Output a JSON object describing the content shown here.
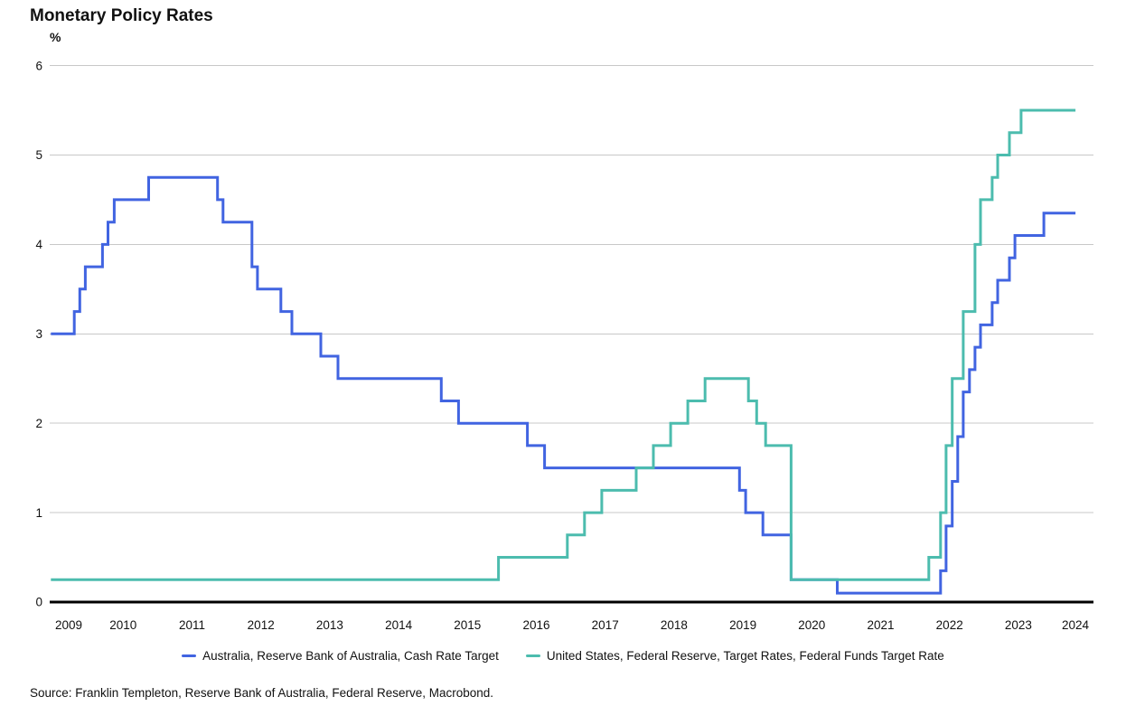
{
  "title": "Monetary Policy Rates",
  "source": "Source: Franklin Templeton, Reserve Bank of Australia, Federal Reserve, Macrobond.",
  "colors": {
    "australia_line": "#4164e1",
    "us_line": "#4cbcae",
    "gridline": "#c8c8c8",
    "zero_axis": "#000000",
    "text": "#111111"
  },
  "chart_data": {
    "type": "line",
    "step": true,
    "title": "Monetary Policy Rates",
    "xlabel": "",
    "ylabel": "%",
    "grid": true,
    "legend_position": "bottom",
    "ylim": [
      0,
      6
    ],
    "y_ticks": [
      0,
      1,
      2,
      3,
      4,
      5,
      6
    ],
    "x_tick_labels": [
      "2009",
      "2010",
      "2011",
      "2012",
      "2013",
      "2014",
      "2015",
      "2016",
      "2017",
      "2018",
      "2019",
      "2020",
      "2021",
      "2022",
      "2023",
      "2024"
    ],
    "x_range_decimal_years": [
      2009.45,
      2024.33
    ],
    "series": [
      {
        "name": "Australia, Reserve Bank of Australia, Cash Rate Target",
        "color": "#4164e1",
        "points_year_rate": [
          [
            2009.45,
            3.0
          ],
          [
            2009.79,
            3.25
          ],
          [
            2009.87,
            3.5
          ],
          [
            2009.95,
            3.75
          ],
          [
            2010.2,
            4.0
          ],
          [
            2010.28,
            4.25
          ],
          [
            2010.37,
            4.5
          ],
          [
            2010.87,
            4.75
          ],
          [
            2011.87,
            4.5
          ],
          [
            2011.95,
            4.25
          ],
          [
            2012.37,
            3.75
          ],
          [
            2012.45,
            3.5
          ],
          [
            2012.79,
            3.25
          ],
          [
            2012.95,
            3.0
          ],
          [
            2013.37,
            2.75
          ],
          [
            2013.62,
            2.5
          ],
          [
            2015.12,
            2.25
          ],
          [
            2015.37,
            2.0
          ],
          [
            2016.37,
            1.75
          ],
          [
            2016.62,
            1.5
          ],
          [
            2019.45,
            1.25
          ],
          [
            2019.54,
            1.0
          ],
          [
            2019.79,
            0.75
          ],
          [
            2020.2,
            0.25
          ],
          [
            2020.87,
            0.1
          ],
          [
            2022.37,
            0.35
          ],
          [
            2022.45,
            0.85
          ],
          [
            2022.54,
            1.35
          ],
          [
            2022.62,
            1.85
          ],
          [
            2022.7,
            2.35
          ],
          [
            2022.79,
            2.6
          ],
          [
            2022.87,
            2.85
          ],
          [
            2022.95,
            3.1
          ],
          [
            2023.12,
            3.35
          ],
          [
            2023.2,
            3.6
          ],
          [
            2023.37,
            3.85
          ],
          [
            2023.45,
            4.1
          ],
          [
            2023.87,
            4.35
          ],
          [
            2024.33,
            4.35
          ]
        ]
      },
      {
        "name": "United States, Federal Reserve, Target Rates, Federal Funds Target Rate",
        "color": "#4cbcae",
        "points_year_rate": [
          [
            2009.45,
            0.25
          ],
          [
            2015.95,
            0.5
          ],
          [
            2016.95,
            0.75
          ],
          [
            2017.2,
            1.0
          ],
          [
            2017.45,
            1.25
          ],
          [
            2017.95,
            1.5
          ],
          [
            2018.2,
            1.75
          ],
          [
            2018.45,
            2.0
          ],
          [
            2018.7,
            2.25
          ],
          [
            2018.95,
            2.5
          ],
          [
            2019.58,
            2.25
          ],
          [
            2019.7,
            2.0
          ],
          [
            2019.83,
            1.75
          ],
          [
            2020.2,
            0.25
          ],
          [
            2022.2,
            0.5
          ],
          [
            2022.37,
            1.0
          ],
          [
            2022.45,
            1.75
          ],
          [
            2022.54,
            2.5
          ],
          [
            2022.7,
            3.25
          ],
          [
            2022.87,
            4.0
          ],
          [
            2022.95,
            4.5
          ],
          [
            2023.12,
            4.75
          ],
          [
            2023.2,
            5.0
          ],
          [
            2023.37,
            5.25
          ],
          [
            2023.54,
            5.5
          ],
          [
            2024.33,
            5.5
          ]
        ]
      }
    ]
  }
}
